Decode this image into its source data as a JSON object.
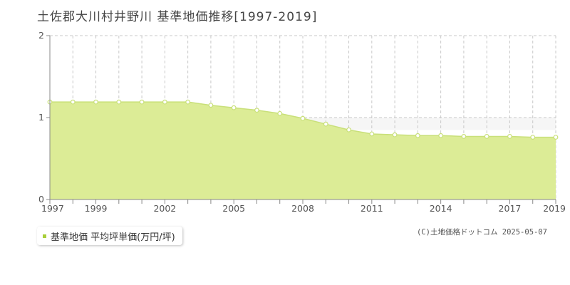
{
  "title": "土佐郡大川村井野川 基準地価推移[1997-2019]",
  "legend": {
    "label": "基準地価 平均坪単価(万円/坪)"
  },
  "credit": "(C)土地価格ドットコム 2025-05-07",
  "colors": {
    "fill": "#dcec96",
    "line": "#c9e07a",
    "marker_fill": "#ffffff",
    "marker_stroke": "#c9e07a",
    "legend_swatch": "#a8cf3a",
    "grid": "#c8c8c8",
    "axis": "#888888"
  },
  "chart_data": {
    "type": "area",
    "title": "土佐郡大川村井野川 基準地価推移[1997-2019]",
    "xlabel": "",
    "ylabel": "",
    "x": [
      1997,
      1998,
      1999,
      2000,
      2001,
      2002,
      2003,
      2004,
      2005,
      2006,
      2007,
      2008,
      2009,
      2010,
      2011,
      2012,
      2013,
      2014,
      2015,
      2016,
      2017,
      2018,
      2019
    ],
    "series": [
      {
        "name": "基準地価 平均坪単価(万円/坪)",
        "values": [
          1.19,
          1.19,
          1.19,
          1.19,
          1.19,
          1.19,
          1.19,
          1.15,
          1.12,
          1.09,
          1.05,
          0.99,
          0.92,
          0.85,
          0.8,
          0.79,
          0.78,
          0.78,
          0.77,
          0.77,
          0.77,
          0.76,
          0.76
        ]
      }
    ],
    "xlim": [
      1997,
      2019
    ],
    "ylim": [
      0,
      2
    ],
    "x_tick_labels": [
      "1997",
      "1999",
      "2002",
      "2005",
      "2008",
      "2011",
      "2014",
      "2017",
      "2019"
    ],
    "y_tick_labels": [
      "0",
      "1",
      "2"
    ],
    "grid": true,
    "legend_position": "bottom-left"
  }
}
